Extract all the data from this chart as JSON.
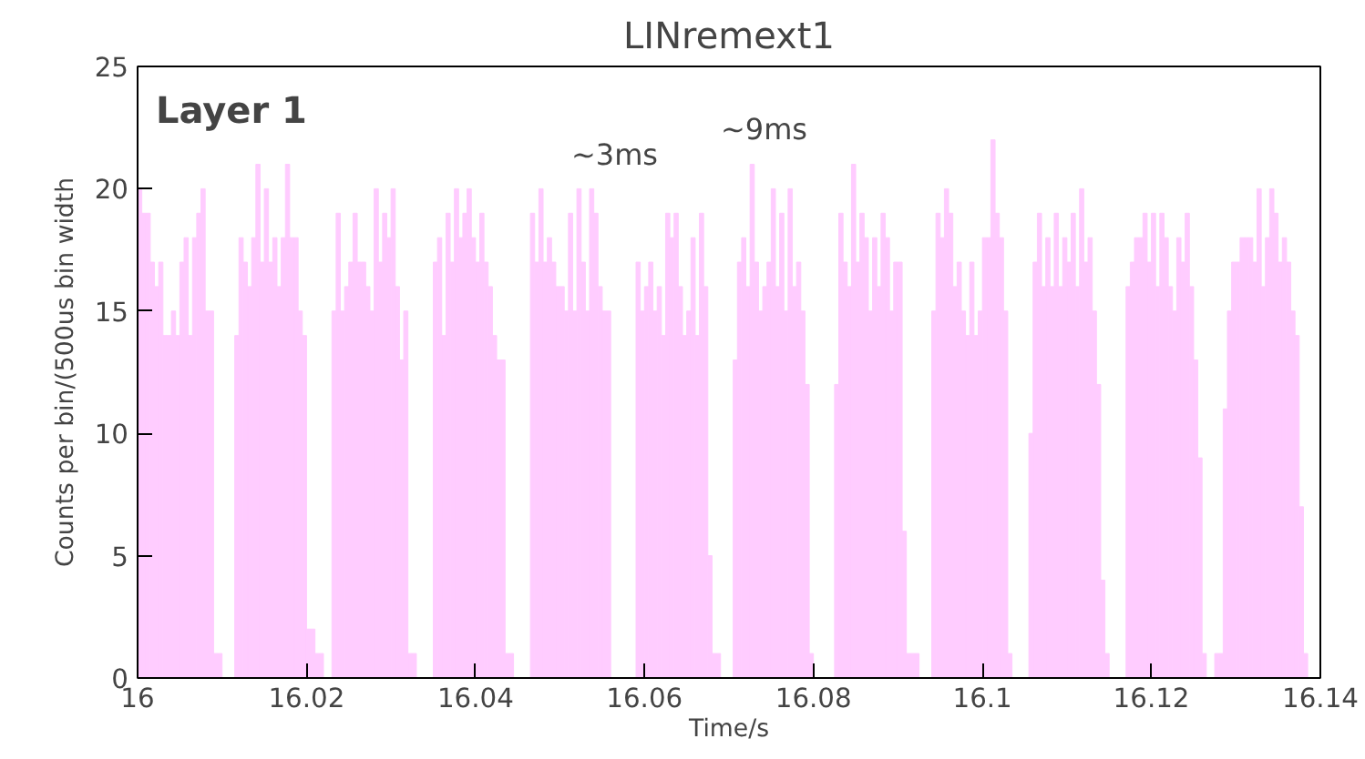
{
  "chart_data": {
    "type": "histogram",
    "title": "LINremext1",
    "xlabel": "Time/s",
    "ylabel": "Counts per bin/(500us bin width",
    "annotations": [
      "Layer 1",
      "~3ms",
      "~9ms"
    ],
    "color": "#ffccff",
    "bins": [
      16,
      16.0005,
      16.001,
      16.0015,
      16.002,
      16.0025,
      16.003,
      16.0035,
      16.004,
      16.0045,
      16.005,
      16.0055,
      16.006,
      16.0065,
      16.007,
      16.0075,
      16.008,
      16.0085,
      16.009,
      16.0095,
      16.01,
      16.0105,
      16.011,
      16.0115,
      16.012,
      16.0125,
      16.013,
      16.0135,
      16.014,
      16.0145,
      16.015,
      16.0155,
      16.016,
      16.0165,
      16.017,
      16.0175,
      16.018,
      16.0185,
      16.019,
      16.0195,
      16.02,
      16.0205,
      16.021,
      16.0215,
      16.022,
      16.0225,
      16.023,
      16.0235,
      16.024,
      16.0245,
      16.025,
      16.0255,
      16.026,
      16.0265,
      16.027,
      16.0275,
      16.028,
      16.0285,
      16.029,
      16.0295,
      16.03,
      16.0305,
      16.031,
      16.0315,
      16.032,
      16.0325,
      16.033,
      16.0335,
      16.034,
      16.0345,
      16.035,
      16.0355,
      16.036,
      16.0365,
      16.037,
      16.0375,
      16.038,
      16.0385,
      16.039,
      16.0395,
      16.04,
      16.0405,
      16.041,
      16.0415,
      16.042,
      16.0425,
      16.043,
      16.0435,
      16.044,
      16.0445,
      16.045,
      16.0455,
      16.046,
      16.0465,
      16.047,
      16.0475,
      16.048,
      16.0485,
      16.049,
      16.0495,
      16.05,
      16.0505,
      16.051,
      16.0515,
      16.052,
      16.0525,
      16.053,
      16.0535,
      16.054,
      16.0545,
      16.055,
      16.0555,
      16.056,
      16.0565,
      16.057,
      16.0575,
      16.058,
      16.0585,
      16.059,
      16.0595,
      16.06,
      16.0605,
      16.061,
      16.0615,
      16.062,
      16.0625,
      16.063,
      16.0635,
      16.064,
      16.0645,
      16.065,
      16.0655,
      16.066,
      16.0665,
      16.067,
      16.0675,
      16.068,
      16.0685,
      16.069,
      16.0695,
      16.07,
      16.0705,
      16.071,
      16.0715,
      16.072,
      16.0725,
      16.073,
      16.0735,
      16.074,
      16.0745,
      16.075,
      16.0755,
      16.076,
      16.0765,
      16.077,
      16.0775,
      16.078,
      16.0785,
      16.079,
      16.0795,
      16.08,
      16.0805,
      16.081,
      16.0815,
      16.082,
      16.0825,
      16.083,
      16.0835,
      16.084,
      16.0845,
      16.085,
      16.0855,
      16.086,
      16.0865,
      16.087,
      16.0875,
      16.088,
      16.0885,
      16.089,
      16.0895,
      16.09,
      16.0905,
      16.091,
      16.0915,
      16.092,
      16.0925,
      16.093,
      16.0935,
      16.094,
      16.0945,
      16.095,
      16.0955,
      16.096,
      16.0965,
      16.097,
      16.0975,
      16.098,
      16.0985,
      16.099,
      16.0995,
      16.1,
      16.1005,
      16.101,
      16.1015,
      16.102,
      16.1025,
      16.103,
      16.1035,
      16.104,
      16.1045,
      16.105,
      16.1055,
      16.106,
      16.1065,
      16.107,
      16.1075,
      16.108,
      16.1085,
      16.109,
      16.1095,
      16.11,
      16.1105,
      16.111,
      16.1115,
      16.112,
      16.1125,
      16.113,
      16.1135,
      16.114,
      16.1145,
      16.115,
      16.1155,
      16.116,
      16.1165,
      16.117,
      16.1175,
      16.118,
      16.1185,
      16.119,
      16.1195,
      16.12,
      16.1205,
      16.121,
      16.1215,
      16.122,
      16.1225,
      16.123,
      16.1235,
      16.124,
      16.1245,
      16.125,
      16.1255,
      16.126,
      16.1265,
      16.127,
      16.1275,
      16.128,
      16.1285,
      16.129,
      16.1295,
      16.13,
      16.1305,
      16.131,
      16.1315,
      16.132,
      16.1325,
      16.133,
      16.1335,
      16.134,
      16.1345,
      16.135,
      16.1355,
      16.136,
      16.1365,
      16.137,
      16.1375,
      16.138,
      16.1385,
      16.139,
      16.1395,
      16.14
    ],
    "values": [
      20,
      19,
      19,
      17,
      16,
      17,
      14,
      14,
      15,
      14,
      17,
      18,
      14,
      18,
      19,
      20,
      15,
      15,
      1,
      1,
      0,
      0,
      0,
      14,
      18,
      17,
      16,
      18,
      21,
      17,
      20,
      17,
      18,
      16,
      18,
      21,
      18,
      18,
      15,
      14,
      2,
      2,
      1,
      1,
      0,
      0,
      15,
      19,
      15,
      16,
      17,
      19,
      17,
      17,
      16,
      15,
      20,
      17,
      19,
      18,
      20,
      16,
      13,
      15,
      1,
      1,
      0,
      0,
      0,
      0,
      17,
      18,
      14,
      19,
      17,
      20,
      18,
      19,
      20,
      18,
      17,
      19,
      17,
      16,
      14,
      13,
      13,
      1,
      1,
      0,
      0,
      0,
      0,
      19,
      17,
      20,
      17,
      18,
      17,
      16,
      16,
      15,
      19,
      15,
      20,
      17,
      15,
      20,
      19,
      16,
      15,
      15,
      0,
      0,
      0,
      0,
      0,
      0,
      17,
      15,
      16,
      17,
      15,
      16,
      14,
      19,
      18,
      19,
      16,
      14,
      15,
      18,
      14,
      19,
      16,
      5,
      1,
      1,
      0,
      0,
      0,
      13,
      17,
      18,
      16,
      21,
      17,
      15,
      16,
      17,
      20,
      16,
      19,
      15,
      20,
      16,
      17,
      15,
      12,
      1,
      0,
      0,
      0,
      0,
      0,
      12,
      19,
      17,
      16,
      21,
      17,
      19,
      18,
      15,
      18,
      16,
      19,
      18,
      15,
      17,
      17,
      6,
      1,
      1,
      1,
      0,
      0,
      0,
      15,
      19,
      18,
      20,
      19,
      16,
      17,
      15,
      14,
      17,
      14,
      15,
      18,
      18,
      22,
      19,
      18,
      15,
      1,
      0,
      0,
      0,
      0,
      10,
      17,
      19,
      16,
      18,
      16,
      19,
      16,
      18,
      17,
      19,
      16,
      20,
      17,
      18,
      15,
      12,
      4,
      1,
      0,
      0,
      0,
      0,
      16,
      17,
      18,
      18,
      19,
      17,
      19,
      16,
      19,
      18,
      16,
      15,
      18,
      17,
      19,
      16,
      13,
      9,
      1,
      0,
      0,
      1,
      1,
      11,
      15,
      17,
      17,
      18,
      18,
      18,
      17,
      20,
      16,
      18,
      20,
      19,
      17,
      18,
      17,
      15,
      14,
      7,
      1,
      0,
      0,
      0
    ],
    "xlim": [
      16,
      16.14
    ],
    "xticks": [
      16,
      16.02,
      16.04,
      16.06,
      16.08,
      16.1,
      16.12,
      16.14
    ],
    "ylim": [
      0,
      25
    ],
    "yticks": [
      0,
      5,
      10,
      15,
      20,
      25
    ],
    "grid": false
  }
}
